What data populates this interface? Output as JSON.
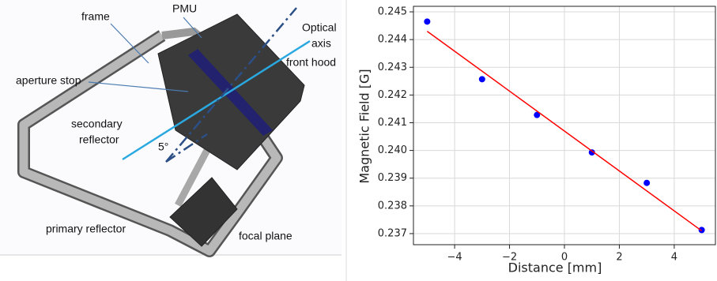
{
  "diagram": {
    "labels": {
      "frame": "frame",
      "pmu": "PMU",
      "optical_axis": [
        "Optical",
        "axis"
      ],
      "front_hood": "front hood",
      "aperture_stop": "aperture stop",
      "secondary_reflector": [
        "secondary",
        "reflector"
      ],
      "angle": "5°",
      "primary_reflector": "primary reflector",
      "focal_plane": "focal plane"
    }
  },
  "chart_data": {
    "type": "scatter",
    "x_label": "Distance [mm]",
    "y_label": "Magnetic Field [G]",
    "series": [
      {
        "mode": "markers",
        "color": "#0000ff",
        "x": [
          -5,
          -3,
          -1,
          1,
          3,
          5
        ],
        "values": [
          0.24465,
          0.24257,
          0.24128,
          0.23993,
          0.23883,
          0.23713
        ]
      },
      {
        "mode": "line",
        "color": "#ff0000",
        "x": [
          -5,
          5
        ],
        "values": [
          0.2443,
          0.2371
        ]
      }
    ],
    "xlim": [
      -5.5,
      5.5
    ],
    "xticks": [
      {
        "value": -4,
        "label": "−4"
      },
      {
        "value": -2,
        "label": "−2"
      },
      0,
      2,
      4
    ],
    "ylim": [
      0.2366,
      0.2452
    ],
    "yticks": [
      0.237,
      0.238,
      0.239,
      {
        "value": 0.24,
        "label": "0.240"
      },
      0.241,
      0.242,
      0.243,
      0.244,
      0.245
    ],
    "grid": true
  }
}
